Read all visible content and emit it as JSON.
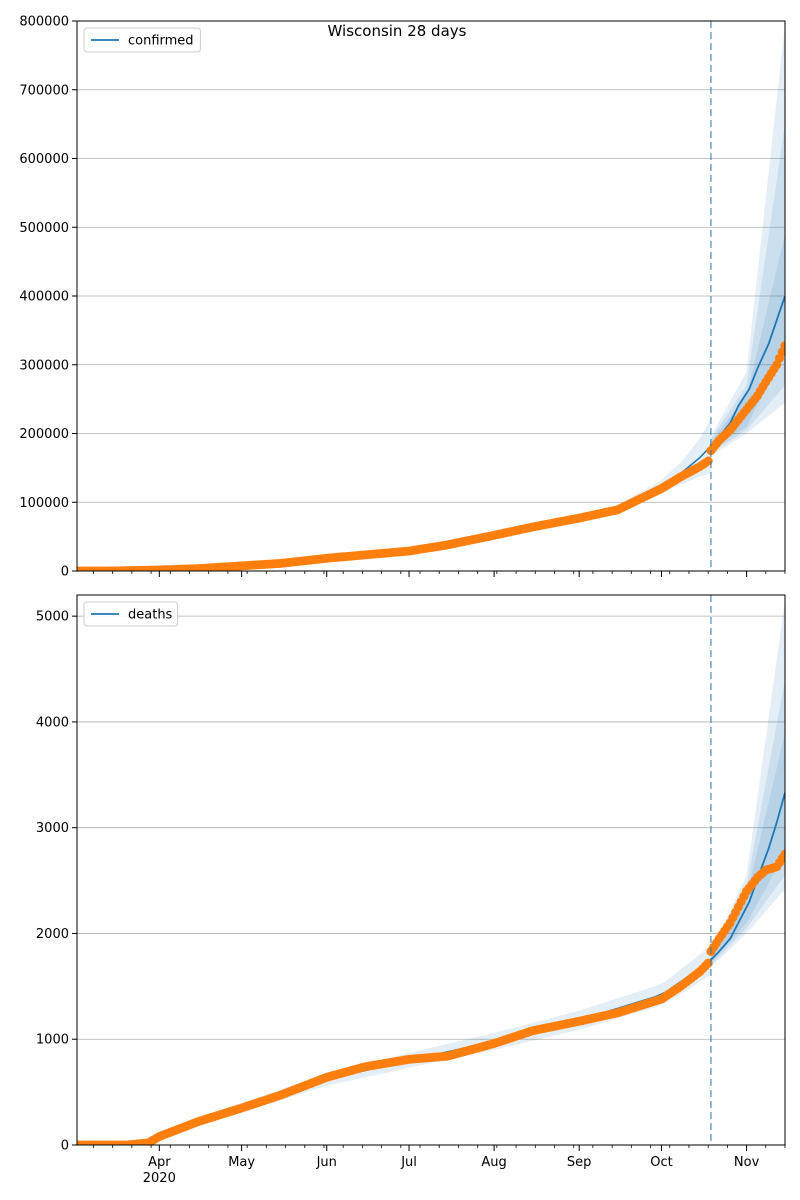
{
  "figure": {
    "title": "Wisconsin 28 days"
  },
  "chart_data": [
    {
      "type": "line",
      "title": "Wisconsin 28 days",
      "xlabel": "",
      "ylabel": "",
      "ylim": [
        0,
        800000
      ],
      "yticks": [
        0,
        100000,
        200000,
        300000,
        400000,
        500000,
        600000,
        700000,
        800000
      ],
      "xlim": [
        "2020-03-02",
        "2020-11-15"
      ],
      "xticks": [
        {
          "date": "2020-04-01",
          "label": "Apr",
          "sublabel": "2020"
        },
        {
          "date": "2020-05-01",
          "label": "May"
        },
        {
          "date": "2020-06-01",
          "label": "Jun"
        },
        {
          "date": "2020-07-01",
          "label": "Jul"
        },
        {
          "date": "2020-08-01",
          "label": "Aug"
        },
        {
          "date": "2020-09-01",
          "label": "Sep"
        },
        {
          "date": "2020-10-01",
          "label": "Oct"
        },
        {
          "date": "2020-11-01",
          "label": "Nov"
        }
      ],
      "grid": "horizontal",
      "legend": {
        "placement": "top-left",
        "entries": [
          "confirmed"
        ]
      },
      "forecast_start": "2020-10-19",
      "series": [
        {
          "name": "confirmed",
          "kind": "forecast-line",
          "x": [
            "2020-10-19",
            "2020-10-22",
            "2020-10-26",
            "2020-10-29",
            "2020-11-02",
            "2020-11-05",
            "2020-11-09",
            "2020-11-12",
            "2020-11-15"
          ],
          "y": [
            182000,
            195000,
            215000,
            240000,
            265000,
            295000,
            330000,
            365000,
            400000
          ],
          "bands": [
            {
              "x": [
                "2020-10-19",
                "2020-11-01",
                "2020-11-15"
              ],
              "lower": [
                176000,
                210000,
                320000
              ],
              "upper": [
                188000,
                255000,
                490000
              ]
            },
            {
              "x": [
                "2020-10-19",
                "2020-11-01",
                "2020-11-15"
              ],
              "lower": [
                172000,
                205000,
                270000
              ],
              "upper": [
                192000,
                270000,
                650000
              ]
            },
            {
              "x": [
                "2020-10-19",
                "2020-11-01",
                "2020-11-15"
              ],
              "lower": [
                168000,
                200000,
                245000
              ],
              "upper": [
                196000,
                290000,
                795000
              ]
            }
          ]
        },
        {
          "kind": "fitted-line",
          "x": [
            "2020-09-01",
            "2020-09-15",
            "2020-10-01",
            "2020-10-08",
            "2020-10-15",
            "2020-10-19"
          ],
          "y": [
            78000,
            90000,
            122000,
            142000,
            165000,
            182000
          ],
          "band_width": [
            4000,
            6000,
            10000,
            16000,
            28000,
            40000
          ]
        },
        {
          "kind": "observed-markers",
          "x": [
            "2020-03-02",
            "2020-03-15",
            "2020-04-01",
            "2020-04-15",
            "2020-05-01",
            "2020-05-15",
            "2020-06-01",
            "2020-06-15",
            "2020-07-01",
            "2020-07-15",
            "2020-08-01",
            "2020-08-15",
            "2020-09-01",
            "2020-09-15",
            "2020-10-01",
            "2020-10-08",
            "2020-10-15",
            "2020-10-18",
            "2020-10-19",
            "2020-10-22",
            "2020-10-26",
            "2020-10-29",
            "2020-11-01",
            "2020-11-05",
            "2020-11-08",
            "2020-11-12",
            "2020-11-15"
          ],
          "y": [
            0,
            100,
            1500,
            3500,
            7500,
            11000,
            18500,
            23500,
            29000,
            38000,
            52000,
            64000,
            77000,
            89000,
            120000,
            137000,
            152000,
            160000,
            175000,
            190000,
            205000,
            220000,
            235000,
            255000,
            275000,
            300000,
            328000
          ]
        }
      ]
    },
    {
      "type": "line",
      "title": "",
      "xlabel": "",
      "ylabel": "",
      "ylim": [
        0,
        5200
      ],
      "yticks": [
        0,
        1000,
        2000,
        3000,
        4000,
        5000
      ],
      "xlim": [
        "2020-03-02",
        "2020-11-15"
      ],
      "xticks": [
        {
          "date": "2020-04-01",
          "label": "Apr",
          "sublabel": "2020"
        },
        {
          "date": "2020-05-01",
          "label": "May"
        },
        {
          "date": "2020-06-01",
          "label": "Jun"
        },
        {
          "date": "2020-07-01",
          "label": "Jul"
        },
        {
          "date": "2020-08-01",
          "label": "Aug"
        },
        {
          "date": "2020-09-01",
          "label": "Sep"
        },
        {
          "date": "2020-10-01",
          "label": "Oct"
        },
        {
          "date": "2020-11-01",
          "label": "Nov"
        }
      ],
      "grid": "horizontal",
      "legend": {
        "placement": "top-left",
        "entries": [
          "deaths"
        ]
      },
      "forecast_start": "2020-10-19",
      "series": [
        {
          "name": "deaths",
          "kind": "forecast-line",
          "x": [
            "2020-10-19",
            "2020-10-22",
            "2020-10-26",
            "2020-10-29",
            "2020-11-02",
            "2020-11-05",
            "2020-11-09",
            "2020-11-12",
            "2020-11-15"
          ],
          "y": [
            1750,
            1830,
            1950,
            2100,
            2300,
            2520,
            2800,
            3050,
            3330
          ],
          "bands": [
            {
              "x": [
                "2020-10-19",
                "2020-11-01",
                "2020-11-15"
              ],
              "lower": [
                1720,
                2100,
                2750
              ],
              "upper": [
                1780,
                2350,
                3900
              ]
            },
            {
              "x": [
                "2020-10-19",
                "2020-11-01",
                "2020-11-15"
              ],
              "lower": [
                1700,
                2050,
                2550
              ],
              "upper": [
                1800,
                2450,
                4400
              ]
            },
            {
              "x": [
                "2020-10-19",
                "2020-11-01",
                "2020-11-15"
              ],
              "lower": [
                1680,
                2000,
                2420
              ],
              "upper": [
                1820,
                2550,
                5150
              ]
            }
          ]
        },
        {
          "kind": "fitted-line",
          "x": [
            "2020-04-01",
            "2020-05-01",
            "2020-06-01",
            "2020-07-01",
            "2020-08-01",
            "2020-09-01",
            "2020-10-01",
            "2020-10-10",
            "2020-10-19"
          ],
          "y": [
            100,
            350,
            620,
            800,
            980,
            1180,
            1420,
            1580,
            1750
          ],
          "band_width": [
            30,
            40,
            60,
            70,
            80,
            90,
            100,
            120,
            140
          ]
        },
        {
          "kind": "observed-markers",
          "x": [
            "2020-03-02",
            "2020-03-20",
            "2020-03-28",
            "2020-04-01",
            "2020-04-15",
            "2020-05-01",
            "2020-05-15",
            "2020-06-01",
            "2020-06-15",
            "2020-07-01",
            "2020-07-15",
            "2020-08-01",
            "2020-08-15",
            "2020-09-01",
            "2020-09-15",
            "2020-10-01",
            "2020-10-08",
            "2020-10-15",
            "2020-10-18",
            "2020-10-19",
            "2020-10-22",
            "2020-10-26",
            "2020-10-29",
            "2020-11-01",
            "2020-11-05",
            "2020-11-08",
            "2020-11-12",
            "2020-11-15"
          ],
          "y": [
            0,
            0,
            20,
            80,
            220,
            350,
            470,
            640,
            740,
            810,
            840,
            960,
            1080,
            1170,
            1250,
            1380,
            1500,
            1640,
            1720,
            1830,
            1950,
            2100,
            2250,
            2400,
            2530,
            2600,
            2630,
            2750
          ]
        }
      ]
    }
  ]
}
